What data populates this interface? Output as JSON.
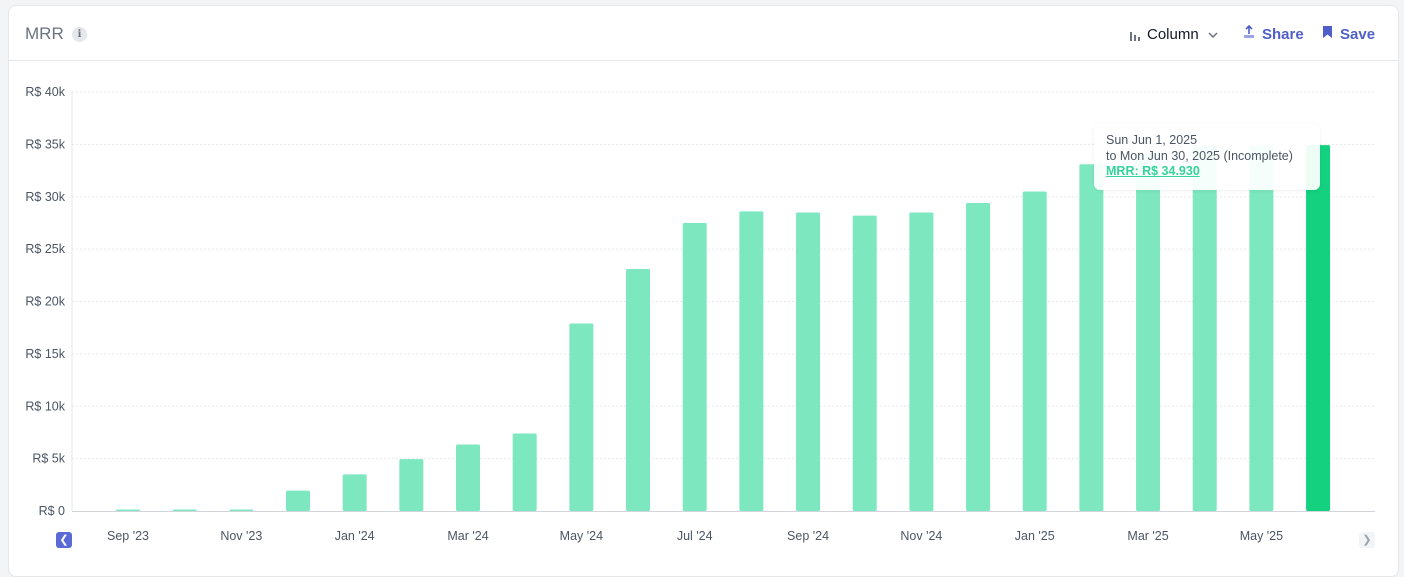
{
  "header": {
    "title": "MRR",
    "info_icon": "info-icon",
    "chart_type_label": "Column",
    "share_label": "Share",
    "save_label": "Save",
    "accent_color": "#4f5fc9"
  },
  "tooltip": {
    "line1": "Sun Jun 1, 2025",
    "line2": "to Mon Jun 30, 2025 (Incomplete)",
    "line3": "MRR: R$ 34.930"
  },
  "nav": {
    "prev_icon": "chevron-left-icon",
    "next_icon": "chevron-right-icon"
  },
  "chart_data": {
    "type": "bar",
    "categories": [
      "Sep '23",
      "Oct '23",
      "Nov '23",
      "Dec '23",
      "Jan '24",
      "Feb '24",
      "Mar '24",
      "Apr '24",
      "May '24",
      "Jun '24",
      "Jul '24",
      "Aug '24",
      "Sep '24",
      "Oct '24",
      "Nov '24",
      "Dec '24",
      "Jan '25",
      "Feb '25",
      "Mar '25",
      "Apr '25",
      "May '25",
      "Jun '25"
    ],
    "tick_labels": [
      "Sep '23",
      "Nov '23",
      "Jan '24",
      "Mar '24",
      "May '24",
      "Jul '24",
      "Sep '24",
      "Nov '24",
      "Jan '25",
      "Mar '25",
      "May '25"
    ],
    "values": [
      120,
      120,
      120,
      1950,
      3500,
      4950,
      6350,
      7400,
      17900,
      23100,
      27500,
      28600,
      28500,
      28200,
      28500,
      29400,
      30500,
      33100,
      34200,
      34900,
      34900,
      34930
    ],
    "highlight_index": 21,
    "y_ticks": [
      "R$ 0",
      "R$ 5k",
      "R$ 10k",
      "R$ 15k",
      "R$ 20k",
      "R$ 25k",
      "R$ 30k",
      "R$ 35k",
      "R$ 40k"
    ],
    "ylim": [
      0,
      40000
    ],
    "grid": true,
    "colors": {
      "bar": "#7de8bf",
      "highlight": "#13d17f",
      "grid": "#e5e7eb"
    }
  }
}
